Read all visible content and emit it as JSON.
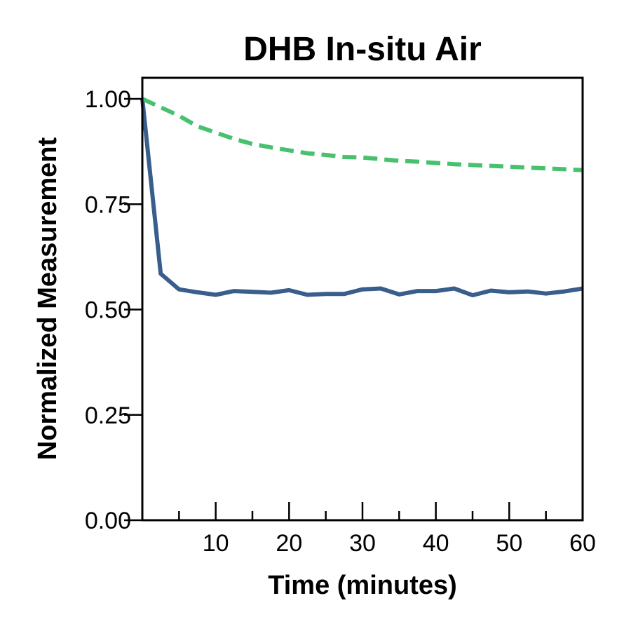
{
  "chart_data": {
    "type": "line",
    "title": "DHB In-situ Air",
    "xlabel": "Time (minutes)",
    "ylabel": "Normalized Measurement",
    "xlim": [
      0,
      60
    ],
    "ylim": [
      0,
      1.05
    ],
    "x_major_ticks": [
      10,
      20,
      30,
      40,
      50,
      60
    ],
    "x_minor_ticks": [
      5,
      15,
      25,
      35,
      45,
      55
    ],
    "y_ticks": [
      0.0,
      0.25,
      0.5,
      0.75,
      1.0
    ],
    "x_tick_labels": [
      "10",
      "20",
      "30",
      "40",
      "50",
      "60"
    ],
    "y_tick_labels": [
      "0.00",
      "0.25",
      "0.50",
      "0.75",
      "1.00"
    ],
    "grid": false,
    "series": [
      {
        "color": "#3a5e8c",
        "style": "solid",
        "x": [
          0,
          2.5,
          5,
          7.5,
          10,
          12.5,
          15,
          17.5,
          20,
          22.5,
          25,
          27.5,
          30,
          32.5,
          35,
          37.5,
          40,
          42.5,
          45,
          47.5,
          50,
          52.5,
          55,
          57.5,
          60
        ],
        "y": [
          1.0,
          0.585,
          0.548,
          0.541,
          0.535,
          0.544,
          0.542,
          0.54,
          0.546,
          0.535,
          0.537,
          0.537,
          0.548,
          0.55,
          0.536,
          0.544,
          0.544,
          0.55,
          0.534,
          0.545,
          0.541,
          0.543,
          0.538,
          0.543,
          0.55
        ]
      },
      {
        "color": "#47c16e",
        "style": "dashed",
        "x": [
          0,
          2.5,
          5,
          7.5,
          10,
          12.5,
          15,
          17.5,
          20,
          22.5,
          25,
          27.5,
          30,
          32.5,
          35,
          37.5,
          40,
          42.5,
          45,
          47.5,
          50,
          52.5,
          55,
          57.5,
          60
        ],
        "y": [
          1.0,
          0.98,
          0.96,
          0.935,
          0.92,
          0.905,
          0.893,
          0.885,
          0.878,
          0.871,
          0.867,
          0.862,
          0.861,
          0.857,
          0.853,
          0.851,
          0.848,
          0.845,
          0.843,
          0.841,
          0.839,
          0.837,
          0.835,
          0.833,
          0.831
        ]
      }
    ]
  }
}
